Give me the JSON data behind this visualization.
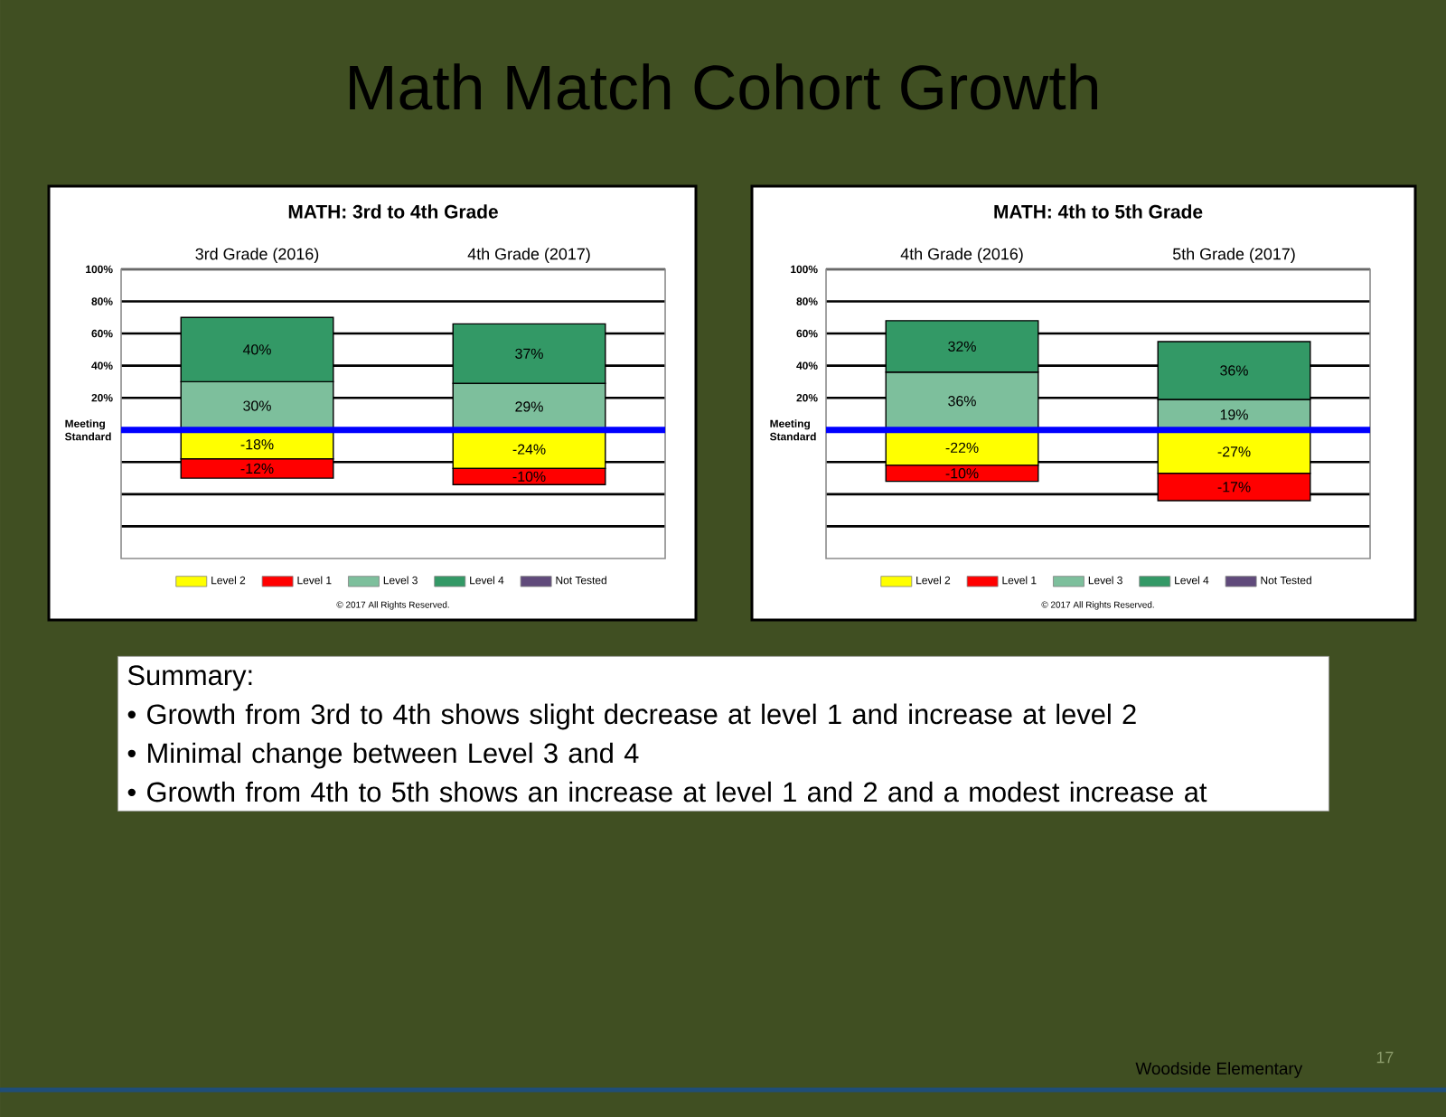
{
  "chart_data": [
    {
      "type": "other",
      "title": "Math Match Cohort Growth"
    },
    {
      "type": "bar",
      "title": "MATH: 3rd to 4th Grade",
      "categories": [
        "3rd Grade (2016)",
        "4th Grade (2017)"
      ],
      "stacked": true,
      "series": [
        {
          "name": "Level 2",
          "color": "#ffff00",
          "values": [
            -18,
            -24
          ],
          "value_labels": [
            "-18%",
            "-24%"
          ]
        },
        {
          "name": "Level 1",
          "color": "#ff0000",
          "values": [
            -12,
            -10
          ],
          "value_labels": [
            "-12%",
            "-10%"
          ]
        },
        {
          "name": "Level 3",
          "color": "#7dbf9c",
          "values": [
            30,
            29
          ],
          "value_labels": [
            "30%",
            "29%"
          ]
        },
        {
          "name": "Level 4",
          "color": "#339966",
          "values": [
            40,
            37
          ],
          "value_labels": [
            "40%",
            "37%"
          ]
        },
        {
          "name": "Not Tested",
          "color": "#604a7b",
          "values": [
            null,
            null
          ]
        }
      ],
      "ylim": [
        -80,
        100
      ],
      "yticks": [
        {
          "value": -60,
          "label": null
        },
        {
          "value": -40,
          "label": null
        },
        {
          "value": -20,
          "label": null
        },
        {
          "value": 20,
          "label": "20%"
        },
        {
          "value": 40,
          "label": "40%"
        },
        {
          "value": 60,
          "label": "60%"
        },
        {
          "value": 80,
          "label": "80%"
        },
        {
          "value": 100,
          "label": "100%"
        }
      ],
      "grid": "y",
      "legend": "bottom",
      "ref_lines": [
        {
          "axis": "y",
          "value": 0,
          "label": "Meeting Standard",
          "color": "#0000ff"
        }
      ],
      "annotations": [
        "© 2017 All Rights Reserved."
      ]
    },
    {
      "type": "bar",
      "title": "MATH: 4th to 5th Grade",
      "categories": [
        "4th Grade (2016)",
        "5th Grade (2017)"
      ],
      "stacked": true,
      "series": [
        {
          "name": "Level 2",
          "color": "#ffff00",
          "values": [
            -22,
            -27
          ],
          "value_labels": [
            "-22%",
            "-27%"
          ]
        },
        {
          "name": "Level 1",
          "color": "#ff0000",
          "values": [
            -10,
            -17
          ],
          "value_labels": [
            "-10%",
            "-17%"
          ]
        },
        {
          "name": "Level 3",
          "color": "#7dbf9c",
          "values": [
            36,
            19
          ],
          "value_labels": [
            "36%",
            "19%"
          ]
        },
        {
          "name": "Level 4",
          "color": "#339966",
          "values": [
            32,
            36
          ],
          "value_labels": [
            "32%",
            "36%"
          ]
        },
        {
          "name": "Not Tested",
          "color": "#604a7b",
          "values": [
            null,
            null
          ]
        }
      ],
      "ylim": [
        -80,
        100
      ],
      "yticks": [
        {
          "value": -60,
          "label": null
        },
        {
          "value": -40,
          "label": null
        },
        {
          "value": -20,
          "label": null
        },
        {
          "value": 20,
          "label": "20%"
        },
        {
          "value": 40,
          "label": "40%"
        },
        {
          "value": 60,
          "label": "60%"
        },
        {
          "value": 80,
          "label": "80%"
        },
        {
          "value": 100,
          "label": "100%"
        }
      ],
      "grid": "y",
      "legend": "bottom",
      "ref_lines": [
        {
          "axis": "y",
          "value": 0,
          "label": "Meeting Standard",
          "color": "#0000ff"
        }
      ],
      "annotations": [
        "© 2017 All Rights Reserved."
      ]
    },
    {
      "type": "other",
      "title": "Summary:",
      "annotations": [
        "• Growth from 3rd to 4th shows slight decrease at level 1 and increase at level 2",
        "• Minimal change between Level 3 and 4",
        "• Growth from 4th to 5th shows an increase at level 1 and 2 and a modest increase at"
      ]
    },
    {
      "type": "other",
      "annotations": [
        "Woodside Elementary",
        "17"
      ]
    }
  ]
}
